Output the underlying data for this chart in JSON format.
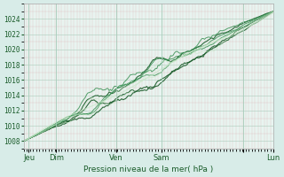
{
  "background_color": "#d8ece8",
  "plot_bg_color": "#e8f4f0",
  "grid_color_major": "#aaccbb",
  "grid_color_minor": "#ccddcc",
  "line_color_dark": "#1a5c2a",
  "line_color_mid": "#2e8b4a",
  "line_color_light": "#c8e8c8",
  "ylabel_ticks": [
    1008,
    1010,
    1012,
    1014,
    1016,
    1018,
    1020,
    1022,
    1024
  ],
  "ylim": [
    1007,
    1026
  ],
  "xlabel": "Pression niveau de la mer( hPa )",
  "x_tick_labels": [
    "Jeu",
    "Dim",
    "Ven",
    "Sam",
    "",
    "Lun"
  ],
  "x_tick_positions": [
    0.02,
    0.13,
    0.37,
    0.55,
    0.88,
    1.0
  ],
  "x_vline_positions": [
    0.02,
    0.13,
    0.37,
    0.55,
    0.88
  ],
  "num_points": 200
}
